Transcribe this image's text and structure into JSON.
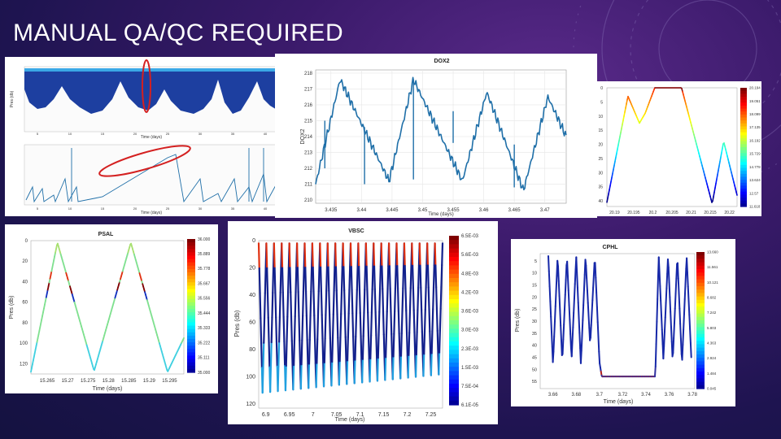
{
  "slide": {
    "title": "MANUAL QA/QC REQUIRED"
  },
  "colors": {
    "background": "#2a1a5c",
    "trace": "#1f6fa8",
    "highlight": "#d42020",
    "jet": [
      "#00007f",
      "#0000ff",
      "#007fff",
      "#00ffff",
      "#7fff7f",
      "#ffff00",
      "#ff7f00",
      "#ff0000",
      "#7f0000"
    ]
  },
  "chart_data": [
    {
      "type": "heatmap",
      "title": "",
      "xlabel": "Time (days)",
      "ylabel": "Pres (db)",
      "xticks": [
        "5",
        "10",
        "15",
        "20",
        "25",
        "30",
        "35",
        "40"
      ],
      "annotations": [
        "red oval highlighting anomalous column"
      ]
    },
    {
      "type": "line",
      "title": "",
      "xlabel": "Time (days)",
      "xticks": [
        "5",
        "10",
        "15",
        "20",
        "25",
        "30",
        "35",
        "40"
      ],
      "annotations": [
        "red oval highlighting drifting segment"
      ]
    },
    {
      "type": "line",
      "title": "DOX2",
      "xlabel": "Time (days)",
      "ylabel": "DOX2",
      "xticks": [
        "3.435",
        "3.44",
        "3.445",
        "3.45",
        "3.455",
        "3.46",
        "3.465",
        "3.47"
      ],
      "yticks": [
        "218",
        "217",
        "216",
        "215",
        "214",
        "213",
        "212",
        "211",
        "210"
      ],
      "x_range": [
        3.4325,
        3.4735
      ],
      "y_range": [
        209.8,
        218.2
      ],
      "series": [
        {
          "x": [
            3.4325,
            3.4365,
            3.4445,
            3.4485,
            3.4565,
            3.4605,
            3.4665,
            3.4705,
            3.4735
          ],
          "values": [
            211.0,
            217.6,
            211.2,
            217.6,
            211.2,
            216.8,
            210.6,
            216.5,
            214.0
          ]
        }
      ],
      "spikes": [
        {
          "x": 3.434,
          "from": 215.0,
          "to": 212.0
        },
        {
          "x": 3.4405,
          "from": 214.6,
          "to": 211.0
        },
        {
          "x": 3.4485,
          "from": 217.6,
          "to": 211.3
        },
        {
          "x": 3.455,
          "from": 215.6,
          "to": 213.6
        },
        {
          "x": 3.465,
          "from": 213.5,
          "to": 210.8
        }
      ]
    },
    {
      "type": "line",
      "title": "",
      "xlabel": "",
      "ylabel": "",
      "xticks": [
        "20.19",
        "20.195",
        "20.2",
        "20.205",
        "20.21",
        "20.215",
        "20.22"
      ],
      "yticks": [
        "0",
        "5",
        "10",
        "15",
        "20",
        "25",
        "30",
        "35",
        "40"
      ],
      "x_range": [
        20.188,
        20.222
      ],
      "y_range": [
        0,
        42
      ],
      "series": [
        {
          "x": [
            20.188,
            20.1935,
            20.1965,
            20.198,
            20.2005,
            20.2012,
            20.2045,
            20.2075,
            20.2155,
            20.2185,
            20.222
          ],
          "values": [
            40.5,
            3.0,
            12.5,
            9.0,
            0.0,
            0.0,
            0.0,
            0.0,
            41.0,
            19.0,
            38.0
          ]
        }
      ],
      "colorbar": [
        "20.194",
        "19.051",
        "18.099",
        "17.135",
        "16.192",
        "15.729",
        "14.778",
        "13.624",
        "12.57",
        "11.618"
      ]
    },
    {
      "type": "line",
      "title": "PSAL",
      "xlabel": "Time (days)",
      "ylabel": "Pres (db)",
      "xticks": [
        "15.265",
        "15.27",
        "15.275",
        "15.28",
        "15.285",
        "15.29",
        "15.295"
      ],
      "yticks": [
        "0",
        "20",
        "40",
        "60",
        "80",
        "100",
        "120"
      ],
      "x_range": [
        15.261,
        15.2985
      ],
      "y_range": [
        0,
        130
      ],
      "series": [
        {
          "x": [
            15.261,
            15.2675,
            15.2765,
            15.2855,
            15.2945,
            15.2985
          ],
          "values": [
            128,
            2,
            127,
            2,
            128,
            95
          ]
        }
      ],
      "colorbar": [
        "36.000",
        "35.889",
        "35.778",
        "35.667",
        "35.556",
        "35.444",
        "35.333",
        "35.222",
        "35.111",
        "35.000"
      ]
    },
    {
      "type": "line",
      "title": "VBSC",
      "xlabel": "Time (days)",
      "ylabel": "Pres (db)",
      "xticks": [
        "6.9",
        "6.95",
        "7",
        "7.05",
        "7.1",
        "7.15",
        "7.2",
        "7.25"
      ],
      "yticks": [
        "0",
        "20",
        "40",
        "60",
        "80",
        "100",
        "120"
      ],
      "x_range": [
        6.885,
        7.275
      ],
      "y_range": [
        0,
        123
      ],
      "cycles": 24,
      "colorbar": [
        "6.5E-03",
        "5.6E-03",
        "4.8E-03",
        "4.2E-03",
        "3.6E-03",
        "3.0E-03",
        "2.3E-03",
        "1.5E-03",
        "7.5E-04",
        "6.1E-05"
      ]
    },
    {
      "type": "line",
      "title": "CPHL",
      "xlabel": "Time (days)",
      "ylabel": "Pres (db)",
      "xticks": [
        "3.66",
        "3.68",
        "3.7",
        "3.72",
        "3.74",
        "3.76",
        "3.78"
      ],
      "yticks": [
        "5",
        "10",
        "15",
        "20",
        "25",
        "30",
        "35",
        "40",
        "45",
        "50",
        "55"
      ],
      "x_range": [
        3.649,
        3.782
      ],
      "y_range": [
        2,
        58
      ],
      "series": [
        {
          "x": [
            3.656,
            3.66,
            3.664,
            3.668,
            3.672,
            3.676,
            3.68,
            3.684,
            3.688,
            3.692,
            3.696,
            3.7,
            3.702,
            3.748,
            3.751,
            3.755,
            3.759,
            3.763,
            3.767,
            3.771,
            3.775,
            3.779
          ],
          "values": [
            3,
            48,
            3,
            47,
            3,
            46,
            3,
            48,
            3,
            40,
            3,
            47,
            53,
            53,
            3,
            46,
            3,
            47,
            3,
            48,
            3,
            45
          ]
        }
      ],
      "colorbar": [
        "13.660",
        "11.561",
        "10.121",
        "8.682",
        "7.242",
        "5.803",
        "4.363",
        "2.924",
        "1.484",
        "0.045"
      ]
    }
  ]
}
